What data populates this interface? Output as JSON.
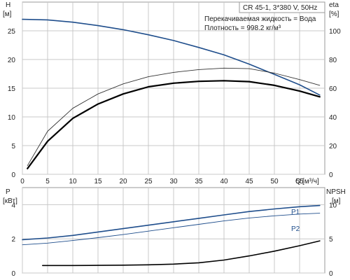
{
  "chart_data": [
    {
      "type": "line",
      "panel": "head-efficiency",
      "title": "CR 45-1, 3*380 V, 50Hz",
      "annotations": [
        "Перекачиваемая жидкость = Вода",
        "Плотность = 998.2 кг/м³"
      ],
      "xlabel": "Q",
      "xunit": "[м³/ч]",
      "xlim": [
        0,
        60
      ],
      "xticks": [
        0,
        5,
        10,
        15,
        20,
        25,
        30,
        35,
        40,
        45,
        50,
        55
      ],
      "grid": true,
      "left_axis": {
        "label": "H",
        "unit": "[м]",
        "lim": [
          0,
          30
        ],
        "ticks": [
          0,
          5,
          10,
          15,
          20,
          25
        ]
      },
      "right_axis": {
        "label": "eta",
        "unit": "[%]",
        "lim": [
          0,
          120
        ],
        "ticks": [
          0,
          20,
          40,
          60,
          80,
          100
        ]
      },
      "series": [
        {
          "axis": "left",
          "color": "#1f4e8c",
          "x": [
            0,
            5,
            10,
            15,
            20,
            25,
            30,
            35,
            40,
            45,
            50,
            55,
            59
          ],
          "y": [
            27,
            26.9,
            26.5,
            25.9,
            25.2,
            24.3,
            23.3,
            22.1,
            20.8,
            19.2,
            17.4,
            15.6,
            13.8
          ]
        },
        {
          "axis": "right",
          "color": "#000000",
          "x": [
            1,
            5,
            10,
            15,
            20,
            25,
            30,
            35,
            40,
            45,
            50,
            55,
            59
          ],
          "y": [
            4,
            23,
            39,
            49,
            56,
            61,
            63.5,
            64.8,
            65.2,
            64.6,
            62,
            58,
            54
          ]
        },
        {
          "axis": "right",
          "color": "#333333",
          "x": [
            1,
            5,
            10,
            15,
            20,
            25,
            30,
            35,
            40,
            45,
            50,
            55,
            59
          ],
          "y": [
            6,
            30,
            46,
            56,
            63,
            68,
            71,
            73,
            74,
            73.6,
            70.5,
            66,
            62
          ]
        }
      ]
    },
    {
      "type": "line",
      "panel": "power-npsh",
      "xlim": [
        0,
        60
      ],
      "xticks": [
        0,
        5,
        10,
        15,
        20,
        25,
        30,
        35,
        40,
        45,
        50,
        55
      ],
      "grid": true,
      "left_axis": {
        "label": "P",
        "unit": "[кВт]",
        "lim": [
          0,
          5
        ],
        "ticks": [
          0,
          2,
          4
        ]
      },
      "right_axis": {
        "label": "NPSH",
        "unit": "[м]",
        "lim": [
          0,
          12.5
        ],
        "ticks": [
          0,
          5,
          10
        ]
      },
      "series": [
        {
          "name": "P1",
          "axis": "left",
          "color": "#1f4e8c",
          "x": [
            0,
            5,
            10,
            15,
            20,
            25,
            30,
            35,
            40,
            45,
            50,
            55,
            59
          ],
          "y": [
            1.95,
            2.05,
            2.2,
            2.4,
            2.6,
            2.8,
            3.0,
            3.2,
            3.4,
            3.6,
            3.75,
            3.88,
            3.95
          ]
        },
        {
          "name": "P2",
          "axis": "left",
          "color": "#1f4e8c",
          "x": [
            0,
            5,
            10,
            15,
            20,
            25,
            30,
            35,
            40,
            45,
            50,
            55,
            59
          ],
          "y": [
            1.65,
            1.75,
            1.9,
            2.07,
            2.25,
            2.45,
            2.65,
            2.85,
            3.05,
            3.22,
            3.35,
            3.45,
            3.5
          ]
        },
        {
          "axis": "right",
          "color": "#000000",
          "x": [
            4,
            10,
            15,
            20,
            25,
            30,
            35,
            40,
            45,
            50,
            55,
            59
          ],
          "y": [
            1.1,
            1.1,
            1.12,
            1.15,
            1.2,
            1.3,
            1.5,
            1.9,
            2.5,
            3.2,
            4.0,
            4.7
          ]
        }
      ]
    }
  ]
}
